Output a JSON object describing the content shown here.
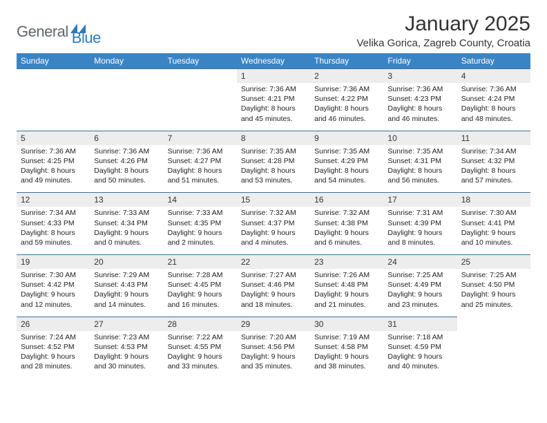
{
  "brand": {
    "part1": "General",
    "part2": "Blue"
  },
  "title": "January 2025",
  "location": "Velika Gorica, Zagreb County, Croatia",
  "colors": {
    "header_bg": "#3b84c4",
    "header_text": "#ffffff",
    "daynum_bg": "#ededed",
    "divider": "#3b6f9b",
    "logo_gray": "#5b6770",
    "logo_blue": "#2f78bd"
  },
  "weekdays": [
    "Sunday",
    "Monday",
    "Tuesday",
    "Wednesday",
    "Thursday",
    "Friday",
    "Saturday"
  ],
  "weeks": [
    [
      null,
      null,
      null,
      {
        "d": "1",
        "sr": "7:36 AM",
        "ss": "4:21 PM",
        "dh": "8",
        "dm": "45"
      },
      {
        "d": "2",
        "sr": "7:36 AM",
        "ss": "4:22 PM",
        "dh": "8",
        "dm": "46"
      },
      {
        "d": "3",
        "sr": "7:36 AM",
        "ss": "4:23 PM",
        "dh": "8",
        "dm": "46"
      },
      {
        "d": "4",
        "sr": "7:36 AM",
        "ss": "4:24 PM",
        "dh": "8",
        "dm": "48"
      }
    ],
    [
      {
        "d": "5",
        "sr": "7:36 AM",
        "ss": "4:25 PM",
        "dh": "8",
        "dm": "49"
      },
      {
        "d": "6",
        "sr": "7:36 AM",
        "ss": "4:26 PM",
        "dh": "8",
        "dm": "50"
      },
      {
        "d": "7",
        "sr": "7:36 AM",
        "ss": "4:27 PM",
        "dh": "8",
        "dm": "51"
      },
      {
        "d": "8",
        "sr": "7:35 AM",
        "ss": "4:28 PM",
        "dh": "8",
        "dm": "53"
      },
      {
        "d": "9",
        "sr": "7:35 AM",
        "ss": "4:29 PM",
        "dh": "8",
        "dm": "54"
      },
      {
        "d": "10",
        "sr": "7:35 AM",
        "ss": "4:31 PM",
        "dh": "8",
        "dm": "56"
      },
      {
        "d": "11",
        "sr": "7:34 AM",
        "ss": "4:32 PM",
        "dh": "8",
        "dm": "57"
      }
    ],
    [
      {
        "d": "12",
        "sr": "7:34 AM",
        "ss": "4:33 PM",
        "dh": "8",
        "dm": "59"
      },
      {
        "d": "13",
        "sr": "7:33 AM",
        "ss": "4:34 PM",
        "dh": "9",
        "dm": "0"
      },
      {
        "d": "14",
        "sr": "7:33 AM",
        "ss": "4:35 PM",
        "dh": "9",
        "dm": "2"
      },
      {
        "d": "15",
        "sr": "7:32 AM",
        "ss": "4:37 PM",
        "dh": "9",
        "dm": "4"
      },
      {
        "d": "16",
        "sr": "7:32 AM",
        "ss": "4:38 PM",
        "dh": "9",
        "dm": "6"
      },
      {
        "d": "17",
        "sr": "7:31 AM",
        "ss": "4:39 PM",
        "dh": "9",
        "dm": "8"
      },
      {
        "d": "18",
        "sr": "7:30 AM",
        "ss": "4:41 PM",
        "dh": "9",
        "dm": "10"
      }
    ],
    [
      {
        "d": "19",
        "sr": "7:30 AM",
        "ss": "4:42 PM",
        "dh": "9",
        "dm": "12"
      },
      {
        "d": "20",
        "sr": "7:29 AM",
        "ss": "4:43 PM",
        "dh": "9",
        "dm": "14"
      },
      {
        "d": "21",
        "sr": "7:28 AM",
        "ss": "4:45 PM",
        "dh": "9",
        "dm": "16"
      },
      {
        "d": "22",
        "sr": "7:27 AM",
        "ss": "4:46 PM",
        "dh": "9",
        "dm": "18"
      },
      {
        "d": "23",
        "sr": "7:26 AM",
        "ss": "4:48 PM",
        "dh": "9",
        "dm": "21"
      },
      {
        "d": "24",
        "sr": "7:25 AM",
        "ss": "4:49 PM",
        "dh": "9",
        "dm": "23"
      },
      {
        "d": "25",
        "sr": "7:25 AM",
        "ss": "4:50 PM",
        "dh": "9",
        "dm": "25"
      }
    ],
    [
      {
        "d": "26",
        "sr": "7:24 AM",
        "ss": "4:52 PM",
        "dh": "9",
        "dm": "28"
      },
      {
        "d": "27",
        "sr": "7:23 AM",
        "ss": "4:53 PM",
        "dh": "9",
        "dm": "30"
      },
      {
        "d": "28",
        "sr": "7:22 AM",
        "ss": "4:55 PM",
        "dh": "9",
        "dm": "33"
      },
      {
        "d": "29",
        "sr": "7:20 AM",
        "ss": "4:56 PM",
        "dh": "9",
        "dm": "35"
      },
      {
        "d": "30",
        "sr": "7:19 AM",
        "ss": "4:58 PM",
        "dh": "9",
        "dm": "38"
      },
      {
        "d": "31",
        "sr": "7:18 AM",
        "ss": "4:59 PM",
        "dh": "9",
        "dm": "40"
      },
      null
    ]
  ]
}
